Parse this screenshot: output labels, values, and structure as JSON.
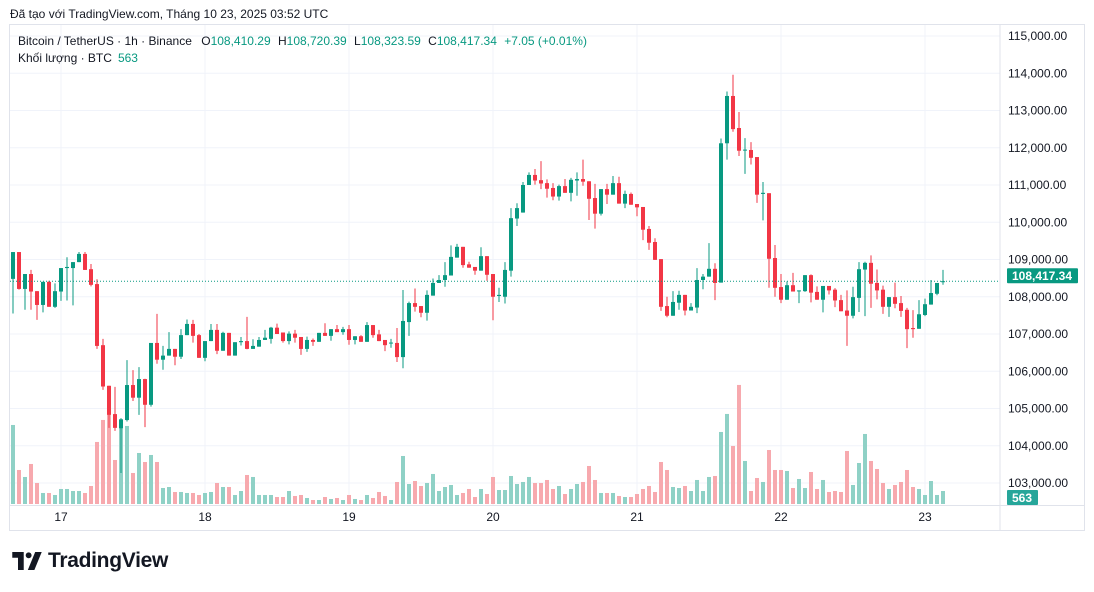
{
  "caption": "Đã tạo với TradingView.com, Tháng 10 23, 2025 03:52 UTC",
  "legend": {
    "symbol": "Bitcoin / TetherUS · 1h · Binance",
    "open_key": "O",
    "open": "108,410.29",
    "high_key": "H",
    "high": "108,720.39",
    "low_key": "L",
    "low": "108,323.59",
    "close_key": "C",
    "close": "108,417.34",
    "change": "+7.05 (+0.01%)",
    "volume_label": "Khối lượng · BTC",
    "volume_value": "563"
  },
  "price_axis": {
    "labels": [
      "115,000.00",
      "114,000.00",
      "113,000.00",
      "112,000.00",
      "111,000.00",
      "110,000.00",
      "109,000.00",
      "108,000.00",
      "107,000.00",
      "106,000.00",
      "105,000.00",
      "104,000.00",
      "103,000.00"
    ],
    "current_price_label": "108,417.34",
    "current_volume_label": "563"
  },
  "time_axis": {
    "labels": [
      "17",
      "18",
      "19",
      "20",
      "21",
      "22",
      "23"
    ]
  },
  "logo_text": "TradingView",
  "colors": {
    "up": "#089981",
    "down": "#f23645",
    "up_volume": "#8fd1c6",
    "down_volume": "#f7a9ae",
    "grid": "#f0f3fa"
  },
  "chart_data": {
    "type": "candlestick",
    "interval": "1h",
    "ylim": [
      103000,
      115000
    ],
    "grid": true,
    "day_tick_candle_index": [
      8,
      32,
      56,
      80,
      104,
      128,
      152
    ],
    "ohlc": [
      [
        108480,
        109200,
        107550,
        109200
      ],
      [
        109200,
        109200,
        108190,
        108210
      ],
      [
        108210,
        108610,
        107650,
        108610
      ],
      [
        108610,
        108720,
        107650,
        108140
      ],
      [
        108150,
        108150,
        107380,
        107780
      ],
      [
        107780,
        108400,
        107580,
        108400
      ],
      [
        108400,
        108430,
        107730,
        107730
      ],
      [
        107730,
        108360,
        107700,
        108150
      ],
      [
        108140,
        108770,
        107890,
        108770
      ],
      [
        108770,
        109060,
        107900,
        108800
      ],
      [
        108770,
        108930,
        107770,
        108930
      ],
      [
        108930,
        109200,
        108930,
        109150
      ],
      [
        109150,
        109200,
        108720,
        108720
      ],
      [
        108740,
        108880,
        108280,
        108320
      ],
      [
        108340,
        108470,
        106600,
        106680
      ],
      [
        106700,
        106870,
        105500,
        105590
      ],
      [
        105610,
        105610,
        104480,
        104830
      ],
      [
        104850,
        105580,
        104400,
        104480
      ],
      [
        104470,
        104740,
        103270,
        104710
      ],
      [
        104690,
        106300,
        104650,
        105630
      ],
      [
        105630,
        106030,
        105200,
        105290
      ],
      [
        105290,
        106110,
        104830,
        105790
      ],
      [
        105790,
        105800,
        104500,
        105100
      ],
      [
        105100,
        106760,
        105050,
        106760
      ],
      [
        106760,
        107540,
        106200,
        106310
      ],
      [
        106310,
        106680,
        106040,
        106420
      ],
      [
        106420,
        107050,
        106420,
        106600
      ],
      [
        106600,
        106600,
        106160,
        106390
      ],
      [
        106390,
        107130,
        106330,
        106970
      ],
      [
        106970,
        107390,
        106970,
        107270
      ],
      [
        107270,
        107380,
        106770,
        106950
      ],
      [
        106970,
        107000,
        106360,
        106360
      ],
      [
        106360,
        106810,
        106270,
        106810
      ],
      [
        106810,
        107270,
        106810,
        107110
      ],
      [
        107110,
        107270,
        106460,
        106550
      ],
      [
        106550,
        107060,
        106550,
        107030
      ],
      [
        107030,
        107030,
        106420,
        106420
      ],
      [
        106420,
        106780,
        106420,
        106780
      ],
      [
        106780,
        106920,
        106690,
        106810
      ],
      [
        106810,
        107460,
        106590,
        106600
      ],
      [
        106600,
        106860,
        106600,
        106680
      ],
      [
        106660,
        106920,
        106660,
        106840
      ],
      [
        106840,
        107110,
        106840,
        106900
      ],
      [
        106870,
        107190,
        106740,
        107170
      ],
      [
        107170,
        107280,
        107000,
        107000
      ],
      [
        107040,
        107040,
        106770,
        106810
      ],
      [
        106810,
        107070,
        106720,
        107010
      ],
      [
        107010,
        107110,
        106770,
        106900
      ],
      [
        106920,
        106920,
        106440,
        106600
      ],
      [
        106600,
        106930,
        106520,
        106840
      ],
      [
        106840,
        106880,
        106680,
        106790
      ],
      [
        106790,
        107030,
        106790,
        107030
      ],
      [
        107030,
        107290,
        106950,
        106950
      ],
      [
        106950,
        107130,
        106820,
        107130
      ],
      [
        107130,
        107240,
        107050,
        107050
      ],
      [
        107050,
        107190,
        106980,
        107130
      ],
      [
        107130,
        107240,
        106710,
        106840
      ],
      [
        106840,
        106940,
        106720,
        106940
      ],
      [
        106940,
        106970,
        106790,
        106790
      ],
      [
        106790,
        107320,
        106790,
        107240
      ],
      [
        107240,
        107240,
        106900,
        106970
      ],
      [
        106990,
        107110,
        106810,
        106810
      ],
      [
        106840,
        106840,
        106540,
        106700
      ],
      [
        106760,
        106870,
        106630,
        106770
      ],
      [
        106760,
        107160,
        106250,
        106380
      ],
      [
        106380,
        108180,
        106080,
        107350
      ],
      [
        107320,
        107870,
        106950,
        107830
      ],
      [
        107830,
        108220,
        107600,
        107730
      ],
      [
        107750,
        107750,
        107450,
        107570
      ],
      [
        107570,
        108170,
        107360,
        108050
      ],
      [
        108030,
        108490,
        108030,
        108370
      ],
      [
        108370,
        108580,
        108370,
        108450
      ],
      [
        108450,
        108930,
        108270,
        108580
      ],
      [
        108570,
        109380,
        108570,
        109070
      ],
      [
        109050,
        109420,
        109050,
        109340
      ],
      [
        109340,
        109340,
        108780,
        108850
      ],
      [
        108870,
        108940,
        108780,
        108780
      ],
      [
        108800,
        108800,
        108590,
        108700
      ],
      [
        108700,
        109330,
        108700,
        109090
      ],
      [
        109090,
        109090,
        108430,
        108590
      ],
      [
        108610,
        108610,
        107370,
        108000
      ],
      [
        108020,
        108240,
        107860,
        108050
      ],
      [
        108000,
        108930,
        107820,
        108720
      ],
      [
        108700,
        110380,
        108540,
        110110
      ],
      [
        110100,
        110510,
        109900,
        110380
      ],
      [
        110260,
        111080,
        110260,
        111000
      ],
      [
        111000,
        111340,
        111000,
        111270
      ],
      [
        111270,
        111430,
        111010,
        111120
      ],
      [
        111130,
        111640,
        110890,
        111040
      ],
      [
        111050,
        111150,
        110660,
        110900
      ],
      [
        110920,
        111050,
        110590,
        110690
      ],
      [
        110690,
        111010,
        110580,
        110970
      ],
      [
        110970,
        111160,
        110790,
        110790
      ],
      [
        110790,
        111190,
        110560,
        111140
      ],
      [
        111120,
        111340,
        110710,
        111160
      ],
      [
        111160,
        111680,
        110980,
        111090
      ],
      [
        111100,
        111100,
        110060,
        110630
      ],
      [
        110650,
        111030,
        109830,
        110230
      ],
      [
        110230,
        110890,
        110180,
        110890
      ],
      [
        110890,
        111030,
        110490,
        110740
      ],
      [
        110740,
        111240,
        110740,
        111050
      ],
      [
        111050,
        111220,
        110500,
        110500
      ],
      [
        110500,
        110850,
        110380,
        110760
      ],
      [
        110760,
        110800,
        110470,
        110470
      ],
      [
        110490,
        110490,
        110160,
        110400
      ],
      [
        110410,
        110410,
        109520,
        109800
      ],
      [
        109820,
        109900,
        109260,
        109450
      ],
      [
        109470,
        109570,
        108990,
        108990
      ],
      [
        109010,
        109010,
        107620,
        107730
      ],
      [
        107750,
        108000,
        107450,
        107490
      ],
      [
        107490,
        108150,
        107490,
        107860
      ],
      [
        107840,
        108160,
        107650,
        108050
      ],
      [
        108050,
        108050,
        107500,
        107630
      ],
      [
        107630,
        107830,
        107630,
        107730
      ],
      [
        107710,
        108770,
        107560,
        108450
      ],
      [
        108450,
        108610,
        108200,
        108540
      ],
      [
        108540,
        109440,
        108540,
        108750
      ],
      [
        108750,
        108900,
        107910,
        108370
      ],
      [
        108380,
        112250,
        108380,
        112120
      ],
      [
        112120,
        113510,
        111680,
        113390
      ],
      [
        113390,
        113960,
        112430,
        112500
      ],
      [
        112530,
        112960,
        111780,
        111920
      ],
      [
        111930,
        112260,
        111300,
        111950
      ],
      [
        111940,
        112150,
        111550,
        111730
      ],
      [
        111750,
        111750,
        110520,
        110740
      ],
      [
        110760,
        111080,
        110050,
        110790
      ],
      [
        110780,
        110780,
        108240,
        109020
      ],
      [
        109040,
        109390,
        108000,
        108240
      ],
      [
        108260,
        108610,
        107830,
        107920
      ],
      [
        107920,
        108410,
        107920,
        108310
      ],
      [
        108310,
        108640,
        108140,
        108140
      ],
      [
        108160,
        108170,
        107830,
        108170
      ],
      [
        108150,
        108580,
        108130,
        108580
      ],
      [
        108580,
        108600,
        107850,
        108110
      ],
      [
        108130,
        108280,
        107920,
        107920
      ],
      [
        107920,
        108290,
        107580,
        108290
      ],
      [
        108290,
        108290,
        108060,
        108170
      ],
      [
        108190,
        108230,
        107720,
        107900
      ],
      [
        107910,
        108050,
        107610,
        107610
      ],
      [
        107630,
        108170,
        106680,
        107490
      ],
      [
        107490,
        108270,
        107420,
        107990
      ],
      [
        107970,
        108930,
        107590,
        108740
      ],
      [
        108730,
        108940,
        107480,
        108910
      ],
      [
        108910,
        109110,
        107700,
        108350
      ],
      [
        108370,
        108730,
        107930,
        108170
      ],
      [
        108190,
        108300,
        107540,
        107730
      ],
      [
        107730,
        107990,
        107460,
        107990
      ],
      [
        107990,
        108380,
        107690,
        107810
      ],
      [
        107830,
        108020,
        107460,
        107620
      ],
      [
        107650,
        107700,
        106620,
        107130
      ],
      [
        107160,
        107640,
        106900,
        107130
      ],
      [
        107140,
        107910,
        107140,
        107530
      ],
      [
        107510,
        107950,
        107480,
        107800
      ],
      [
        107790,
        108450,
        107790,
        108100
      ],
      [
        108080,
        108370,
        108040,
        108370
      ],
      [
        108410.29,
        108720.39,
        108323.59,
        108417.34
      ]
    ],
    "volume": [
      3422,
      1473,
      1170,
      1733,
      910,
      477,
      477,
      390,
      650,
      650,
      563,
      563,
      477,
      780,
      2686,
      3639,
      5066,
      1906,
      3379,
      3379,
      1343,
      2209,
      1819,
      2123,
      1819,
      693,
      736,
      520,
      520,
      477,
      477,
      390,
      477,
      520,
      910,
      736,
      736,
      390,
      563,
      1256,
      1170,
      390,
      390,
      390,
      303,
      303,
      563,
      347,
      390,
      260,
      173,
      173,
      303,
      217,
      260,
      173,
      390,
      217,
      173,
      390,
      260,
      520,
      347,
      173,
      953,
      2079,
      866,
      996,
      780,
      910,
      1300,
      563,
      736,
      823,
      390,
      477,
      650,
      303,
      650,
      433,
      1170,
      606,
      606,
      1213,
      866,
      953,
      1170,
      910,
      910,
      1040,
      650,
      780,
      433,
      650,
      866,
      953,
      1646,
      1040,
      477,
      477,
      477,
      347,
      303,
      303,
      433,
      650,
      780,
      520,
      1819,
      1473,
      736,
      693,
      780,
      563,
      1040,
      563,
      1170,
      1213,
      3119,
      3899,
      2513,
      5155,
      1863,
      563,
      1126,
      953,
      2339,
      1473,
      1473,
      1430,
      693,
      1083,
      693,
      1386,
      650,
      1040,
      520,
      563,
      520,
      2296,
      823,
      1776,
      3032,
      1863,
      1516,
      910,
      650,
      823,
      953,
      1473,
      736,
      650,
      390,
      996,
      390,
      563
    ],
    "last_price": 108417.34
  }
}
